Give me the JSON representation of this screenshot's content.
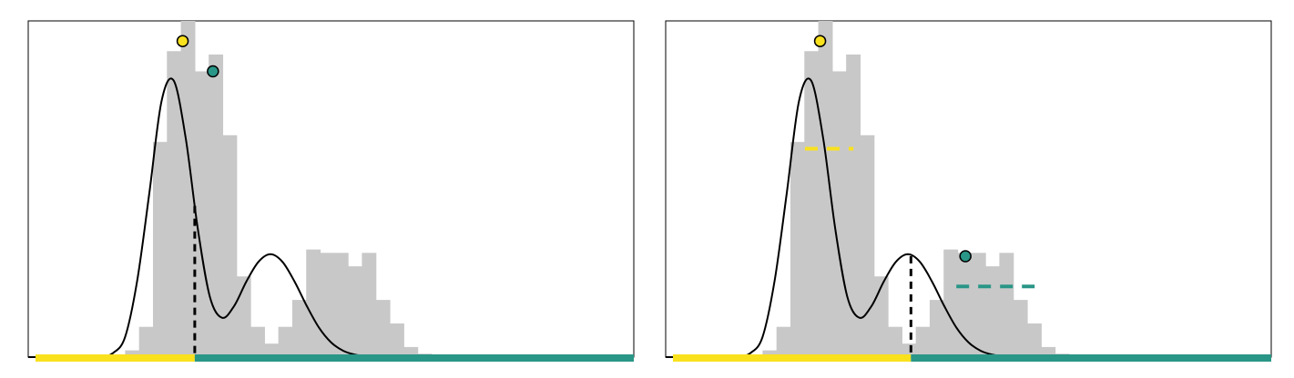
{
  "colors": {
    "histogram": "#c8c8c8",
    "density": "#000000",
    "class_a": "#f9e11e",
    "class_b": "#2a9687",
    "threshold": "#000000",
    "frame": "#000000"
  },
  "chart_data": [
    {
      "type": "bar",
      "title": "",
      "xlabel": "",
      "ylabel": "",
      "xlim": [
        0,
        100
      ],
      "ylim": [
        0,
        100
      ],
      "grid": false,
      "histogram": {
        "bin_start": 16,
        "bin_width": 2.3,
        "values": [
          2,
          9,
          64,
          91,
          100,
          85,
          90,
          66,
          24,
          9,
          4,
          9,
          17,
          32,
          31,
          31,
          27,
          31,
          17,
          10,
          3,
          1
        ]
      },
      "density_curve": {
        "x": [
          0,
          2,
          4,
          6,
          8,
          10,
          12,
          14,
          16,
          18,
          20,
          22,
          24,
          26,
          28,
          30,
          32,
          34,
          36,
          38,
          40,
          42,
          44,
          46,
          48,
          50,
          52,
          54,
          56,
          58,
          60,
          62,
          64,
          66,
          68,
          70,
          72,
          74,
          76,
          78,
          80,
          82,
          84,
          86,
          88,
          90,
          92,
          94,
          96,
          98,
          100
        ],
        "y": [
          0,
          0,
          0,
          0,
          0,
          0,
          0.1,
          1.2,
          6.0,
          22.8,
          48.8,
          76.0,
          82.3,
          65.2,
          38.2,
          17.9,
          11.7,
          15.2,
          22.4,
          28.3,
          30.6,
          28.3,
          22.4,
          15.2,
          8.8,
          4.4,
          1.9,
          0.7,
          0.2,
          0.1,
          0,
          0,
          0,
          0,
          0,
          0,
          0,
          0,
          0,
          0,
          0,
          0,
          0,
          0,
          0,
          0,
          0,
          0,
          0,
          0,
          0
        ]
      },
      "threshold_x": 27.5,
      "peak_markers": [
        {
          "x": 25.5,
          "y": 94,
          "class": "a"
        },
        {
          "x": 30.5,
          "y": 85,
          "class": "b"
        }
      ],
      "class_means": [],
      "class_bands": [
        {
          "class": "a",
          "from": 0,
          "to": 27.5
        },
        {
          "class": "b",
          "from": 27.5,
          "to": 100
        }
      ]
    },
    {
      "type": "bar",
      "title": "",
      "xlabel": "",
      "ylabel": "",
      "xlim": [
        0,
        100
      ],
      "ylim": [
        0,
        100
      ],
      "grid": false,
      "histogram": {
        "bin_start": 16,
        "bin_width": 2.3,
        "values": [
          2,
          9,
          64,
          91,
          100,
          85,
          90,
          66,
          24,
          9,
          4,
          9,
          17,
          32,
          31,
          31,
          27,
          31,
          17,
          10,
          3,
          1
        ]
      },
      "density_curve": {
        "x": [
          0,
          2,
          4,
          6,
          8,
          10,
          12,
          14,
          16,
          18,
          20,
          22,
          24,
          26,
          28,
          30,
          32,
          34,
          36,
          38,
          40,
          42,
          44,
          46,
          48,
          50,
          52,
          54,
          56,
          58,
          60,
          62,
          64,
          66,
          68,
          70,
          72,
          74,
          76,
          78,
          80,
          82,
          84,
          86,
          88,
          90,
          92,
          94,
          96,
          98,
          100
        ],
        "y": [
          0,
          0,
          0,
          0,
          0,
          0,
          0.1,
          1.2,
          6.0,
          22.8,
          48.8,
          76.0,
          82.3,
          65.2,
          38.2,
          17.9,
          11.7,
          15.2,
          22.4,
          28.3,
          30.6,
          28.3,
          22.4,
          15.2,
          8.8,
          4.4,
          1.9,
          0.7,
          0.2,
          0.1,
          0,
          0,
          0,
          0,
          0,
          0,
          0,
          0,
          0,
          0,
          0,
          0,
          0,
          0,
          0,
          0,
          0,
          0,
          0,
          0,
          0
        ]
      },
      "threshold_x": 40.5,
      "peak_markers": [
        {
          "x": 25.5,
          "y": 94,
          "class": "a"
        },
        {
          "x": 49.5,
          "y": 30,
          "class": "b"
        }
      ],
      "class_means": [
        {
          "class": "a",
          "from": 23,
          "to": 31,
          "y": 62
        },
        {
          "class": "b",
          "from": 48,
          "to": 62,
          "y": 21
        }
      ],
      "class_bands": [
        {
          "class": "a",
          "from": 0,
          "to": 40.5
        },
        {
          "class": "b",
          "from": 40.5,
          "to": 100
        }
      ]
    }
  ]
}
